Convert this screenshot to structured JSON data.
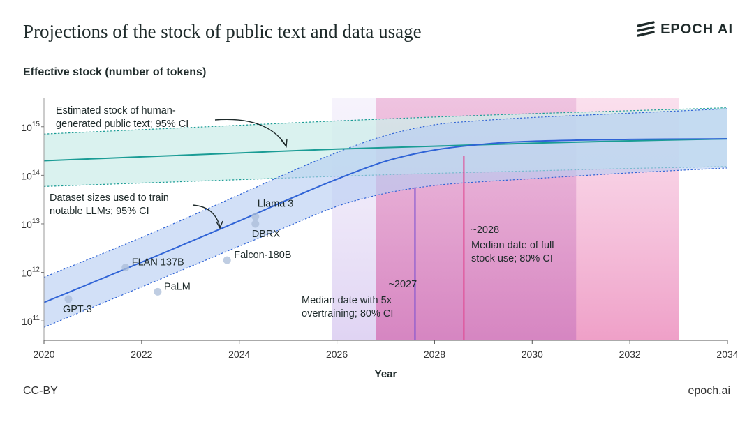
{
  "header": {
    "title": "Projections of the stock of public text and data usage",
    "brand": "EPOCH AI"
  },
  "footer": {
    "license": "CC-BY",
    "site": "epoch.ai"
  },
  "colors": {
    "stock": "#1a9c95",
    "stock_band": "#cdeeea",
    "usage": "#2f63d6",
    "usage_band": "#b7cdf2",
    "date_2027": "#7a4fd0",
    "date_2028": "#e0458f",
    "ci_2027": "#e2d8f4",
    "ci_2028": "#f3aed3"
  },
  "chart_data": {
    "type": "line",
    "ylabel": "Effective stock (number of tokens)",
    "xlabel": "Year",
    "xlim": [
      2020,
      2034
    ],
    "x_ticks": [
      "2020",
      "2022",
      "2024",
      "2026",
      "2028",
      "2030",
      "2032",
      "2034"
    ],
    "ylim_log10": [
      10.6,
      15.6
    ],
    "y_scale": "log",
    "y_ticks": [
      {
        "base": "10",
        "exp": "11",
        "log10": 11
      },
      {
        "base": "10",
        "exp": "12",
        "log10": 12
      },
      {
        "base": "10",
        "exp": "13",
        "log10": 13
      },
      {
        "base": "10",
        "exp": "14",
        "log10": 14
      },
      {
        "base": "10",
        "exp": "15",
        "log10": 15
      }
    ],
    "grid": false,
    "series": [
      {
        "name": "Estimated stock of human-generated public text",
        "x": [
          2020,
          2022,
          2024,
          2026,
          2028,
          2030,
          2032,
          2034
        ],
        "log10_y": [
          14.3,
          14.38,
          14.46,
          14.54,
          14.6,
          14.66,
          14.71,
          14.75
        ],
        "ci_lower": [
          13.77,
          13.84,
          13.91,
          13.98,
          14.04,
          14.09,
          14.14,
          14.18
        ],
        "ci_upper": [
          14.85,
          14.94,
          15.03,
          15.12,
          15.2,
          15.27,
          15.33,
          15.39
        ]
      },
      {
        "name": "Dataset sizes used to train notable LLMs",
        "x": [
          2020,
          2022,
          2024,
          2025,
          2026,
          2027,
          2028,
          2029,
          2030,
          2032,
          2034
        ],
        "log10_y": [
          11.38,
          12.21,
          13.06,
          13.5,
          13.92,
          14.29,
          14.52,
          14.64,
          14.7,
          14.74,
          14.75
        ],
        "ci_lower": [
          10.87,
          11.7,
          12.54,
          12.95,
          13.36,
          13.63,
          13.79,
          13.87,
          13.93,
          14.05,
          14.15
        ],
        "ci_upper": [
          11.9,
          12.72,
          13.6,
          14.05,
          14.47,
          14.82,
          15.04,
          15.13,
          15.19,
          15.28,
          15.37
        ]
      }
    ],
    "models": [
      {
        "name": "GPT-3",
        "x": 2020.5,
        "log10_y": 11.45
      },
      {
        "name": "FLAN 137B",
        "x": 2021.67,
        "log10_y": 12.1
      },
      {
        "name": "PaLM",
        "x": 2022.33,
        "log10_y": 11.6
      },
      {
        "name": "Falcon-180B",
        "x": 2023.75,
        "log10_y": 12.25
      },
      {
        "name": "DBRX",
        "x": 2024.33,
        "log10_y": 13.0
      },
      {
        "name": "Llama 3",
        "x": 2024.33,
        "log10_y": 13.15
      }
    ],
    "estimates": [
      {
        "label": "~2027",
        "median": 2027.6,
        "ci": [
          2025.9,
          2030.9
        ],
        "text": [
          "Median date with 5x",
          "overtraining; 80% CI"
        ]
      },
      {
        "label": "~2028",
        "median": 2028.6,
        "ci": [
          2026.8,
          2033.0
        ],
        "text": [
          "Median date of full",
          "stock use; 80% CI"
        ]
      }
    ],
    "annotations": [
      {
        "lines": [
          "Estimated stock of human-",
          "generated public text; 95% CI"
        ]
      },
      {
        "lines": [
          "Dataset sizes used to train",
          "notable LLMs; 95% CI"
        ]
      }
    ]
  }
}
